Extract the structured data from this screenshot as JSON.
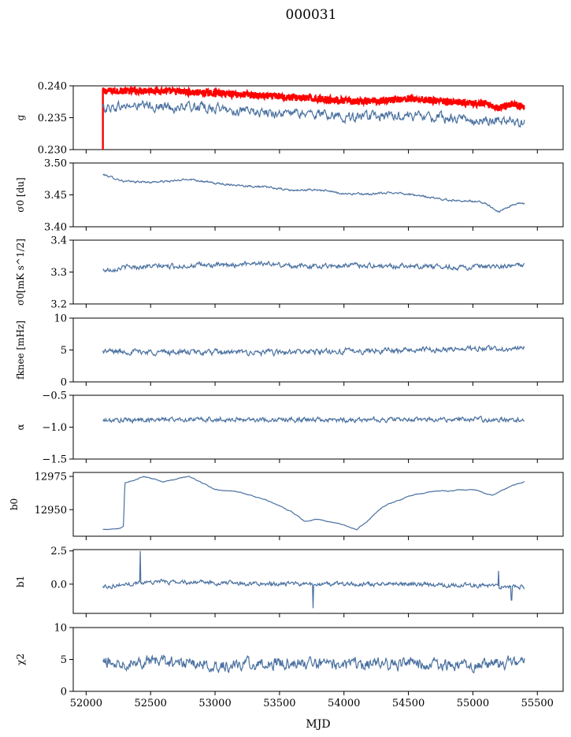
{
  "figure": {
    "title": "000031",
    "xlabel": "MJD"
  },
  "chart_data": [
    {
      "type": "line",
      "ylabel": "g",
      "ylim": [
        0.23,
        0.24
      ],
      "yticks": [
        "0.230",
        "0.235",
        "0.240"
      ],
      "yticks_values": [
        0.23,
        0.235,
        0.24
      ],
      "xlim": [
        51900,
        55700
      ],
      "series": [
        {
          "color": "#ff0000",
          "x": [
            52130,
            52300,
            52500,
            52700,
            52900,
            53100,
            53300,
            53500,
            53700,
            53900,
            54100,
            54300,
            54500,
            54700,
            54900,
            55100,
            55200,
            55300,
            55400
          ],
          "y": [
            0.2392,
            0.2392,
            0.2393,
            0.2391,
            0.2389,
            0.2388,
            0.2385,
            0.2383,
            0.2381,
            0.2378,
            0.2375,
            0.2377,
            0.238,
            0.2377,
            0.2373,
            0.2372,
            0.2365,
            0.2372,
            0.2367
          ]
        },
        {
          "color": "#4a71a0",
          "x": [
            52130,
            52300,
            52500,
            52700,
            52900,
            53100,
            53300,
            53500,
            53700,
            53900,
            54100,
            54300,
            54500,
            54700,
            54900,
            55100,
            55200,
            55300,
            55400
          ],
          "y": [
            0.2365,
            0.2368,
            0.2368,
            0.2366,
            0.2367,
            0.2362,
            0.2358,
            0.2357,
            0.2356,
            0.2355,
            0.235,
            0.2352,
            0.2354,
            0.235,
            0.2348,
            0.2346,
            0.2345,
            0.2345,
            0.2342
          ]
        }
      ]
    },
    {
      "type": "line",
      "ylabel": "σ0 [du]",
      "ylim": [
        3.4,
        3.5
      ],
      "yticks": [
        "3.40",
        "3.45",
        "3.50"
      ],
      "yticks_values": [
        3.4,
        3.45,
        3.5
      ],
      "xlim": [
        51900,
        55700
      ],
      "series": [
        {
          "color": "#4a71a0",
          "x": [
            52130,
            52300,
            52500,
            52700,
            52800,
            53000,
            53200,
            53400,
            53600,
            53800,
            54000,
            54200,
            54400,
            54600,
            54800,
            55000,
            55100,
            55200,
            55300,
            55400
          ],
          "y": [
            3.482,
            3.471,
            3.47,
            3.472,
            3.475,
            3.468,
            3.465,
            3.462,
            3.457,
            3.458,
            3.452,
            3.451,
            3.454,
            3.448,
            3.442,
            3.44,
            3.437,
            3.423,
            3.434,
            3.437
          ]
        }
      ]
    },
    {
      "type": "line",
      "ylabel": "σ0[mK s^1/2]",
      "ylim": [
        3.2,
        3.4
      ],
      "yticks": [
        "3.2",
        "3.3",
        "3.4"
      ],
      "yticks_values": [
        3.2,
        3.3,
        3.4
      ],
      "xlim": [
        51900,
        55700
      ],
      "series": [
        {
          "color": "#4a71a0",
          "x": [
            52130,
            52300,
            52500,
            52700,
            52900,
            53100,
            53300,
            53500,
            53700,
            53900,
            54100,
            54300,
            54500,
            54700,
            54900,
            55100,
            55300,
            55400
          ],
          "y": [
            3.305,
            3.315,
            3.318,
            3.318,
            3.322,
            3.32,
            3.33,
            3.322,
            3.318,
            3.32,
            3.322,
            3.318,
            3.32,
            3.318,
            3.315,
            3.315,
            3.318,
            3.325
          ]
        }
      ]
    },
    {
      "type": "line",
      "ylabel": "fknee [mHz]",
      "ylim": [
        0,
        10
      ],
      "yticks": [
        "0",
        "5",
        "10"
      ],
      "yticks_values": [
        0,
        5,
        10
      ],
      "xlim": [
        51900,
        55700
      ],
      "series": [
        {
          "color": "#4a71a0",
          "x": [
            52130,
            52500,
            53000,
            53500,
            54000,
            54500,
            55000,
            55400
          ],
          "y": [
            4.8,
            4.7,
            4.6,
            4.6,
            4.8,
            5.0,
            5.2,
            5.2
          ]
        }
      ]
    },
    {
      "type": "line",
      "ylabel": "α",
      "ylim": [
        -1.5,
        -0.5
      ],
      "yticks": [
        "-1.5",
        "-1.0",
        "-0.5"
      ],
      "yticks_values": [
        -1.5,
        -1.0,
        -0.5
      ],
      "xlim": [
        51900,
        55700
      ],
      "series": [
        {
          "color": "#4a71a0",
          "x": [
            52130,
            52500,
            53000,
            53500,
            54000,
            54500,
            55000,
            55400
          ],
          "y": [
            -0.9,
            -0.88,
            -0.88,
            -0.88,
            -0.89,
            -0.88,
            -0.88,
            -0.88
          ]
        }
      ]
    },
    {
      "type": "line",
      "ylabel": "b0",
      "ylim": [
        12930,
        12978
      ],
      "yticks": [
        "12950",
        "12975"
      ],
      "yticks_values": [
        12950,
        12975
      ],
      "xlim": [
        51900,
        55700
      ],
      "series": [
        {
          "color": "#4a71a0",
          "x": [
            52130,
            52250,
            52290,
            52300,
            52450,
            52600,
            52800,
            53000,
            53200,
            53400,
            53600,
            53700,
            53800,
            54000,
            54100,
            54200,
            54300,
            54500,
            54700,
            55000,
            55150,
            55300,
            55400
          ],
          "y": [
            12935,
            12936,
            12937,
            12970,
            12975,
            12971,
            12975,
            12965,
            12963,
            12957,
            12948,
            12941,
            12943,
            12938,
            12935,
            12943,
            12952,
            12960,
            12964,
            12965,
            12961,
            12968,
            12971
          ]
        }
      ]
    },
    {
      "type": "line",
      "ylabel": "b1",
      "ylim": [
        -2.2,
        2.6
      ],
      "yticks": [
        "0.0",
        "2.5"
      ],
      "yticks_values": [
        0,
        2.5
      ],
      "xlim": [
        51900,
        55700
      ],
      "series": [
        {
          "color": "#4a71a0",
          "x": [
            52130,
            52500,
            53000,
            53500,
            54000,
            54500,
            55000,
            55400
          ],
          "y": [
            -0.2,
            0.2,
            0.1,
            0.0,
            0.0,
            0.0,
            -0.1,
            -0.2
          ]
        }
      ]
    },
    {
      "type": "line",
      "ylabel": "χ2",
      "ylim": [
        0,
        10
      ],
      "yticks": [
        "0",
        "5",
        "10"
      ],
      "yticks_values": [
        0,
        5,
        10
      ],
      "xlim": [
        51900,
        55700
      ],
      "series": [
        {
          "color": "#4a71a0",
          "x": [
            52130,
            52500,
            53000,
            53500,
            54000,
            54500,
            55000,
            55400
          ],
          "y": [
            4.5,
            4.8,
            4.0,
            4.5,
            4.2,
            4.4,
            4.0,
            4.8
          ]
        }
      ]
    }
  ],
  "xaxis": {
    "ticks": [
      "52000",
      "52500",
      "53000",
      "53500",
      "54000",
      "54500",
      "55000",
      "55500"
    ],
    "tick_values": [
      52000,
      52500,
      53000,
      53500,
      54000,
      54500,
      55000,
      55500
    ]
  }
}
